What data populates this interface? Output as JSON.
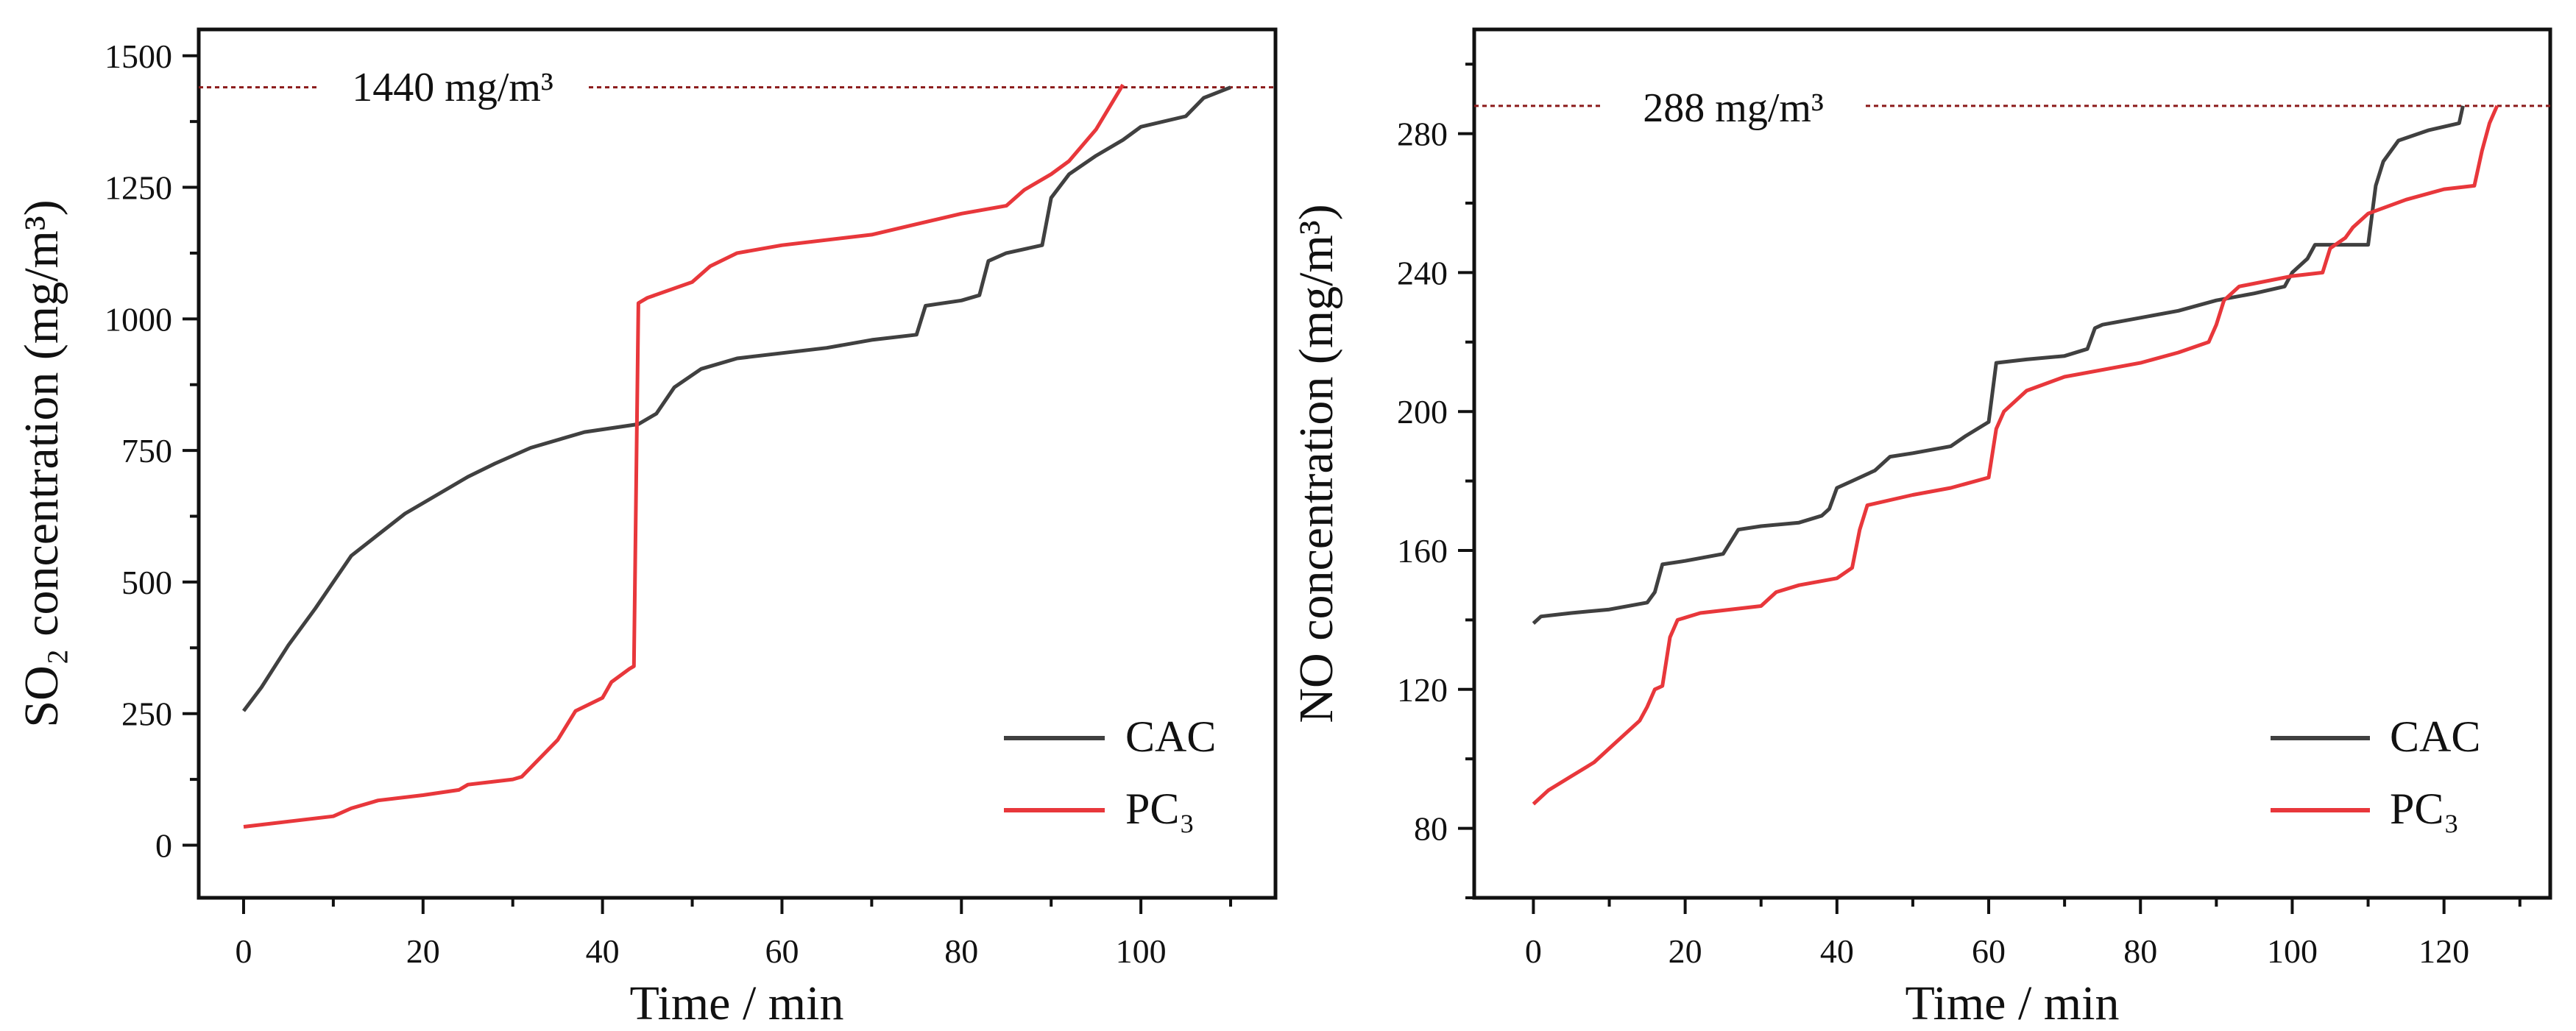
{
  "chart_data": [
    {
      "type": "line",
      "xlabel": "Time / min",
      "ylabel": "SO₂ concentration  (mg/m³)",
      "xlim": [
        -5,
        115
      ],
      "ylim": [
        -100,
        1550
      ],
      "xticks": [
        0,
        20,
        40,
        60,
        80,
        100
      ],
      "yticks": [
        0,
        250,
        500,
        750,
        1000,
        1250,
        1500
      ],
      "grid": false,
      "legend_position": "bottom-right",
      "reference_line": {
        "value": 1440,
        "label": "1440 mg/m³",
        "color": "#8b1a1a"
      },
      "series": [
        {
          "name": "CAC",
          "color": "#404040",
          "x": [
            0,
            2,
            5,
            8,
            10,
            12,
            15,
            18,
            20,
            25,
            28,
            32,
            38,
            44,
            46,
            48,
            51,
            55,
            60,
            65,
            70,
            75,
            76,
            80,
            82,
            83,
            85,
            89,
            90,
            92,
            95,
            98,
            100,
            105,
            107,
            110
          ],
          "y": [
            255,
            300,
            380,
            450,
            500,
            550,
            590,
            630,
            650,
            700,
            725,
            755,
            785,
            800,
            820,
            870,
            905,
            925,
            935,
            945,
            960,
            970,
            1025,
            1035,
            1045,
            1110,
            1125,
            1140,
            1230,
            1275,
            1310,
            1340,
            1365,
            1385,
            1420,
            1440
          ]
        },
        {
          "name": "PC₃",
          "color": "#e8373b",
          "x": [
            0,
            5,
            10,
            12,
            15,
            20,
            24,
            25,
            30,
            31,
            35,
            37,
            40,
            41,
            43,
            43.5,
            44,
            45,
            50,
            52,
            55,
            60,
            70,
            75,
            80,
            85,
            87,
            90,
            92,
            95,
            98
          ],
          "y": [
            35,
            45,
            55,
            70,
            85,
            95,
            105,
            115,
            125,
            130,
            200,
            255,
            280,
            310,
            335,
            340,
            1030,
            1040,
            1070,
            1100,
            1125,
            1140,
            1160,
            1180,
            1200,
            1215,
            1245,
            1275,
            1300,
            1360,
            1445
          ]
        }
      ]
    },
    {
      "type": "line",
      "xlabel": "Time / min",
      "ylabel": "NO concentration  (mg/m³)",
      "xlim": [
        -7.8,
        134
      ],
      "ylim": [
        60,
        310
      ],
      "xticks": [
        0,
        20,
        40,
        60,
        80,
        100,
        120
      ],
      "yticks": [
        80,
        120,
        160,
        200,
        240,
        280
      ],
      "grid": false,
      "legend_position": "bottom-right",
      "reference_line": {
        "value": 288,
        "label": "288 mg/m³",
        "color": "#8b1a1a"
      },
      "series": [
        {
          "name": "CAC",
          "color": "#404040",
          "x": [
            0,
            1,
            5,
            10,
            15,
            16,
            17,
            20,
            25,
            27,
            30,
            35,
            38,
            39,
            40,
            42,
            45,
            47,
            50,
            55,
            57,
            60,
            61,
            65,
            70,
            73,
            74,
            75,
            80,
            85,
            90,
            95,
            99,
            100,
            102,
            103,
            110,
            111,
            112,
            114,
            118,
            122,
            122.5
          ],
          "y": [
            139,
            141,
            142,
            143,
            145,
            148,
            156,
            157,
            159,
            166,
            167,
            168,
            170,
            172,
            178,
            180,
            183,
            187,
            188,
            190,
            193,
            197,
            214,
            215,
            216,
            218,
            224,
            225,
            227,
            229,
            232,
            234,
            236,
            240,
            244,
            248,
            248,
            265,
            272,
            278,
            281,
            283,
            288
          ]
        },
        {
          "name": "PC₃",
          "color": "#e8373b",
          "x": [
            0,
            2,
            5,
            8,
            10,
            12,
            14,
            15,
            16,
            17,
            18,
            19,
            22,
            30,
            32,
            35,
            40,
            42,
            43,
            44,
            50,
            55,
            60,
            61,
            62,
            65,
            70,
            80,
            85,
            89,
            90,
            91,
            93,
            100,
            104,
            105,
            107,
            108,
            110,
            115,
            120,
            124,
            125,
            126,
            127
          ],
          "y": [
            87,
            91,
            95,
            99,
            103,
            107,
            111,
            115,
            120,
            121,
            135,
            140,
            142,
            144,
            148,
            150,
            152,
            155,
            166,
            173,
            176,
            178,
            181,
            195,
            200,
            206,
            210,
            214,
            217,
            220,
            225,
            232,
            236,
            239,
            240,
            247,
            250,
            253,
            257,
            261,
            264,
            265,
            275,
            283,
            288
          ]
        }
      ]
    }
  ]
}
